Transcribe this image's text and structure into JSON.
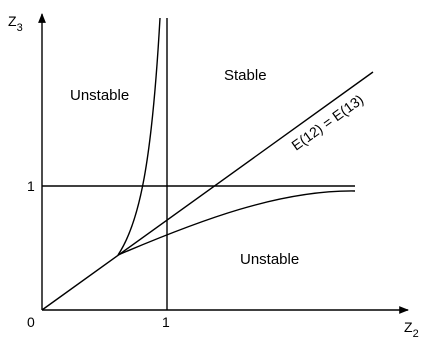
{
  "axes": {
    "y_label_main": "Z",
    "y_label_sub": "3",
    "x_label_main": "Z",
    "x_label_sub": "2",
    "origin": "0",
    "x_tick": "1",
    "y_tick": "1"
  },
  "regions": {
    "unstable_upper_left": "Unstable",
    "stable": "Stable",
    "unstable_lower_right": "Unstable"
  },
  "diagonal_label": "E(12) = E(13)"
}
